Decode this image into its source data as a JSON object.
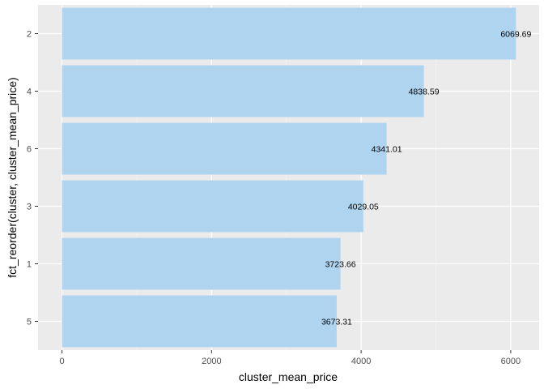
{
  "chart_data": {
    "type": "bar",
    "orientation": "horizontal",
    "categories": [
      "2",
      "4",
      "6",
      "3",
      "1",
      "5"
    ],
    "values": [
      6069.69,
      4838.59,
      4341.01,
      4029.05,
      3723.66,
      3673.31
    ],
    "data_labels": [
      "6069.69",
      "4838.59",
      "4341.01",
      "4029.05",
      "3723.66",
      "3673.31"
    ],
    "xlabel": "cluster_mean_price",
    "ylabel": "fct_reorder(cluster, cluster_mean_price)",
    "xlim": [
      -320,
      6380
    ],
    "x_ticks": [
      0,
      2000,
      4000,
      6000
    ],
    "x_tick_labels": [
      "0",
      "2000",
      "4000",
      "6000"
    ],
    "grid": true,
    "legend": "none",
    "colors": {
      "bar": "#aed4f0",
      "panel": "#ebebeb",
      "grid_major": "#ffffff",
      "grid_minor": "#f5f5f5"
    }
  }
}
